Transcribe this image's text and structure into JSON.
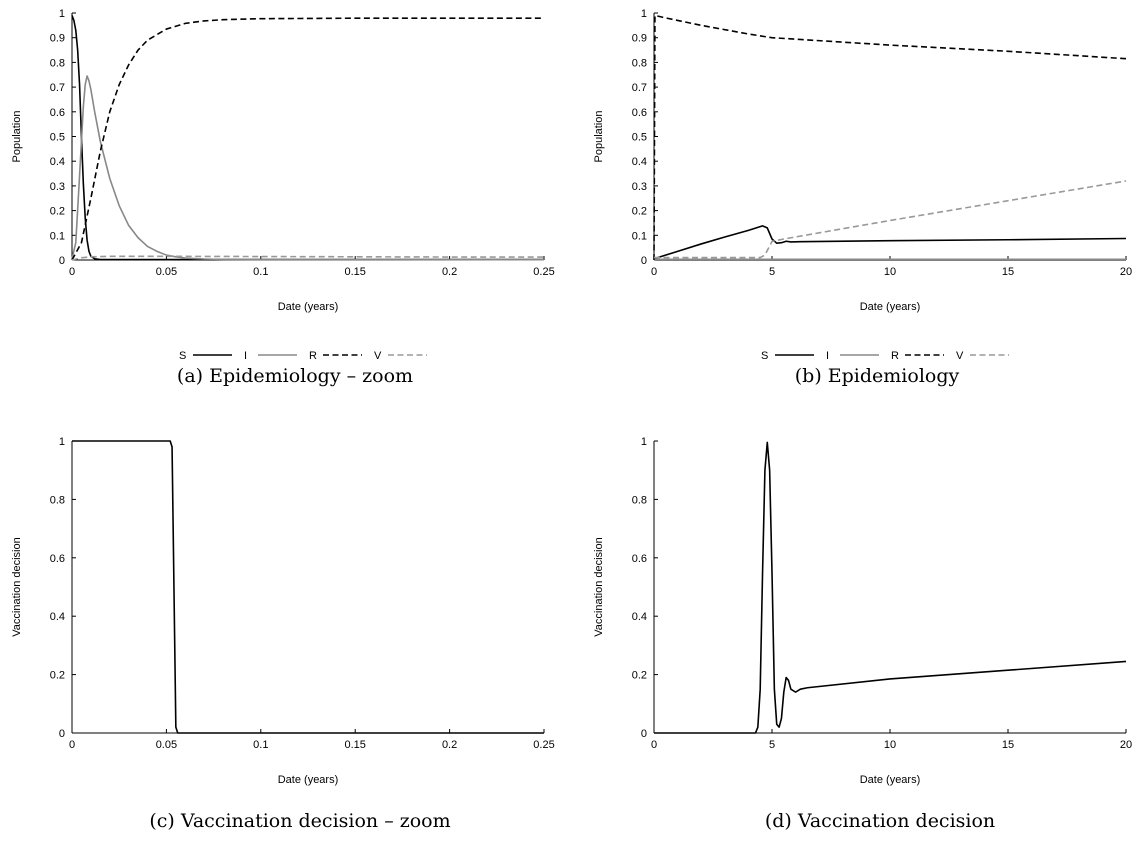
{
  "chart_data": [
    {
      "type": "line",
      "caption": "(a) Epidemiology – zoom",
      "xlabel": "Date (years)",
      "ylabel": "Population",
      "xlim": [
        0,
        0.25
      ],
      "ylim": [
        0,
        1
      ],
      "xticks": [
        0,
        0.05,
        0.1,
        0.15,
        0.2,
        0.25
      ],
      "xtick_labels": [
        "0",
        "0.05",
        "0.1",
        "0.15",
        "0.2",
        "0.25"
      ],
      "yticks": [
        0,
        0.1,
        0.2,
        0.3,
        0.4,
        0.5,
        0.6,
        0.7,
        0.8,
        0.9,
        1
      ],
      "ytick_labels": [
        "0",
        "0.1",
        "0.2",
        "0.3",
        "0.4",
        "0.5",
        "0.6",
        "0.7",
        "0.8",
        "0.9",
        "1"
      ],
      "grid": false,
      "legend": "bottom",
      "series": [
        {
          "name": "S",
          "color": "#000000",
          "dash": "solid",
          "points": [
            [
              0,
              0.99
            ],
            [
              0.001,
              0.97
            ],
            [
              0.002,
              0.93
            ],
            [
              0.003,
              0.85
            ],
            [
              0.004,
              0.71
            ],
            [
              0.005,
              0.5
            ],
            [
              0.006,
              0.31
            ],
            [
              0.007,
              0.17
            ],
            [
              0.008,
              0.08
            ],
            [
              0.009,
              0.035
            ],
            [
              0.01,
              0.015
            ],
            [
              0.012,
              0.005
            ],
            [
              0.015,
              0.002
            ],
            [
              0.25,
              0.002
            ]
          ]
        },
        {
          "name": "I",
          "color": "#888888",
          "dash": "solid",
          "points": [
            [
              0,
              0.005
            ],
            [
              0.002,
              0.07
            ],
            [
              0.004,
              0.34
            ],
            [
              0.006,
              0.62
            ],
            [
              0.007,
              0.71
            ],
            [
              0.008,
              0.745
            ],
            [
              0.009,
              0.725
            ],
            [
              0.01,
              0.69
            ],
            [
              0.012,
              0.6
            ],
            [
              0.015,
              0.48
            ],
            [
              0.02,
              0.33
            ],
            [
              0.025,
              0.22
            ],
            [
              0.03,
              0.14
            ],
            [
              0.035,
              0.09
            ],
            [
              0.04,
              0.055
            ],
            [
              0.045,
              0.035
            ],
            [
              0.05,
              0.02
            ],
            [
              0.055,
              0.013
            ],
            [
              0.06,
              0.008
            ],
            [
              0.07,
              0.004
            ],
            [
              0.08,
              0.002
            ],
            [
              0.25,
              0.001
            ]
          ]
        },
        {
          "name": "R",
          "color": "#000000",
          "dash": "dashed",
          "points": [
            [
              0,
              0
            ],
            [
              0.005,
              0.07
            ],
            [
              0.01,
              0.25
            ],
            [
              0.015,
              0.44
            ],
            [
              0.02,
              0.6
            ],
            [
              0.025,
              0.71
            ],
            [
              0.03,
              0.79
            ],
            [
              0.035,
              0.85
            ],
            [
              0.04,
              0.89
            ],
            [
              0.05,
              0.935
            ],
            [
              0.06,
              0.958
            ],
            [
              0.07,
              0.968
            ],
            [
              0.08,
              0.973
            ],
            [
              0.1,
              0.977
            ],
            [
              0.15,
              0.979
            ],
            [
              0.2,
              0.979
            ],
            [
              0.25,
              0.979
            ]
          ]
        },
        {
          "name": "V",
          "color": "#999999",
          "dash": "dashed",
          "points": [
            [
              0,
              0
            ],
            [
              0.005,
              0.009
            ],
            [
              0.01,
              0.013
            ],
            [
              0.02,
              0.015
            ],
            [
              0.05,
              0.015
            ],
            [
              0.1,
              0.014
            ],
            [
              0.15,
              0.013
            ],
            [
              0.2,
              0.012
            ],
            [
              0.25,
              0.012
            ]
          ]
        }
      ]
    },
    {
      "type": "line",
      "caption": "(b) Epidemiology",
      "xlabel": "Date (years)",
      "ylabel": "Population",
      "xlim": [
        0,
        20
      ],
      "ylim": [
        0,
        1
      ],
      "xticks": [
        0,
        5,
        10,
        15,
        20
      ],
      "xtick_labels": [
        "0",
        "5",
        "10",
        "15",
        "20"
      ],
      "yticks": [
        0,
        0.1,
        0.2,
        0.3,
        0.4,
        0.5,
        0.6,
        0.7,
        0.8,
        0.9,
        1
      ],
      "ytick_labels": [
        "0",
        "0.1",
        "0.2",
        "0.3",
        "0.4",
        "0.5",
        "0.6",
        "0.7",
        "0.8",
        "0.9",
        "1"
      ],
      "grid": false,
      "legend": "bottom",
      "series": [
        {
          "name": "S",
          "color": "#000000",
          "dash": "solid",
          "points": [
            [
              0,
              0.005
            ],
            [
              1,
              0.035
            ],
            [
              2,
              0.065
            ],
            [
              3,
              0.093
            ],
            [
              4,
              0.12
            ],
            [
              4.6,
              0.138
            ],
            [
              4.8,
              0.13
            ],
            [
              5.0,
              0.085
            ],
            [
              5.2,
              0.068
            ],
            [
              5.4,
              0.07
            ],
            [
              5.6,
              0.076
            ],
            [
              5.8,
              0.073
            ],
            [
              6.2,
              0.074
            ],
            [
              10,
              0.078
            ],
            [
              15,
              0.082
            ],
            [
              20,
              0.087
            ]
          ]
        },
        {
          "name": "I",
          "color": "#888888",
          "dash": "solid",
          "points": [
            [
              0,
              0
            ],
            [
              0.05,
              0.003
            ],
            [
              20,
              0.003
            ]
          ]
        },
        {
          "name": "R",
          "color": "#000000",
          "dash": "dashed",
          "points": [
            [
              0,
              0
            ],
            [
              0.04,
              0.99
            ],
            [
              0.5,
              0.98
            ],
            [
              2,
              0.95
            ],
            [
              4,
              0.915
            ],
            [
              5,
              0.9
            ],
            [
              10,
              0.87
            ],
            [
              15,
              0.845
            ],
            [
              20,
              0.815
            ]
          ]
        },
        {
          "name": "V",
          "color": "#999999",
          "dash": "dashed",
          "points": [
            [
              0,
              0.01
            ],
            [
              4.5,
              0.01
            ],
            [
              4.7,
              0.02
            ],
            [
              5.0,
              0.075
            ],
            [
              5.5,
              0.085
            ],
            [
              10,
              0.16
            ],
            [
              15,
              0.24
            ],
            [
              20,
              0.32
            ]
          ]
        }
      ]
    },
    {
      "type": "line",
      "caption": "(c) Vaccination decision – zoom",
      "xlabel": "Date (years)",
      "ylabel": "Vaccination decision",
      "xlim": [
        0,
        0.25
      ],
      "ylim": [
        0,
        1
      ],
      "xticks": [
        0,
        0.05,
        0.1,
        0.15,
        0.2,
        0.25
      ],
      "xtick_labels": [
        "0",
        "0.05",
        "0.1",
        "0.15",
        "0.2",
        "0.25"
      ],
      "yticks": [
        0,
        0.2,
        0.4,
        0.6,
        0.8,
        1
      ],
      "ytick_labels": [
        "0",
        "0.2",
        "0.4",
        "0.6",
        "0.8",
        "1"
      ],
      "grid": false,
      "legend": "none",
      "series": [
        {
          "color": "#000000",
          "dash": "solid",
          "points": [
            [
              0,
              1
            ],
            [
              0.052,
              1
            ],
            [
              0.053,
              0.98
            ],
            [
              0.054,
              0.5
            ],
            [
              0.055,
              0.02
            ],
            [
              0.056,
              0
            ],
            [
              0.25,
              0
            ]
          ]
        }
      ]
    },
    {
      "type": "line",
      "caption": "(d) Vaccination decision",
      "xlabel": "Date (years)",
      "ylabel": "Vaccination decision",
      "xlim": [
        0,
        20
      ],
      "ylim": [
        0,
        1
      ],
      "xticks": [
        0,
        5,
        10,
        15,
        20
      ],
      "xtick_labels": [
        "0",
        "5",
        "10",
        "15",
        "20"
      ],
      "yticks": [
        0,
        0.2,
        0.4,
        0.6,
        0.8,
        1
      ],
      "ytick_labels": [
        "0",
        "0.2",
        "0.4",
        "0.6",
        "0.8",
        "1"
      ],
      "grid": false,
      "legend": "none",
      "series": [
        {
          "color": "#000000",
          "dash": "solid",
          "points": [
            [
              0,
              0
            ],
            [
              4.3,
              0
            ],
            [
              4.4,
              0.02
            ],
            [
              4.5,
              0.15
            ],
            [
              4.6,
              0.55
            ],
            [
              4.7,
              0.9
            ],
            [
              4.8,
              0.995
            ],
            [
              4.9,
              0.9
            ],
            [
              5.0,
              0.55
            ],
            [
              5.1,
              0.15
            ],
            [
              5.2,
              0.03
            ],
            [
              5.3,
              0.02
            ],
            [
              5.4,
              0.05
            ],
            [
              5.5,
              0.14
            ],
            [
              5.6,
              0.19
            ],
            [
              5.7,
              0.18
            ],
            [
              5.8,
              0.15
            ],
            [
              6.0,
              0.14
            ],
            [
              6.2,
              0.15
            ],
            [
              6.5,
              0.155
            ],
            [
              10,
              0.185
            ],
            [
              15,
              0.215
            ],
            [
              20,
              0.245
            ]
          ]
        }
      ]
    }
  ]
}
